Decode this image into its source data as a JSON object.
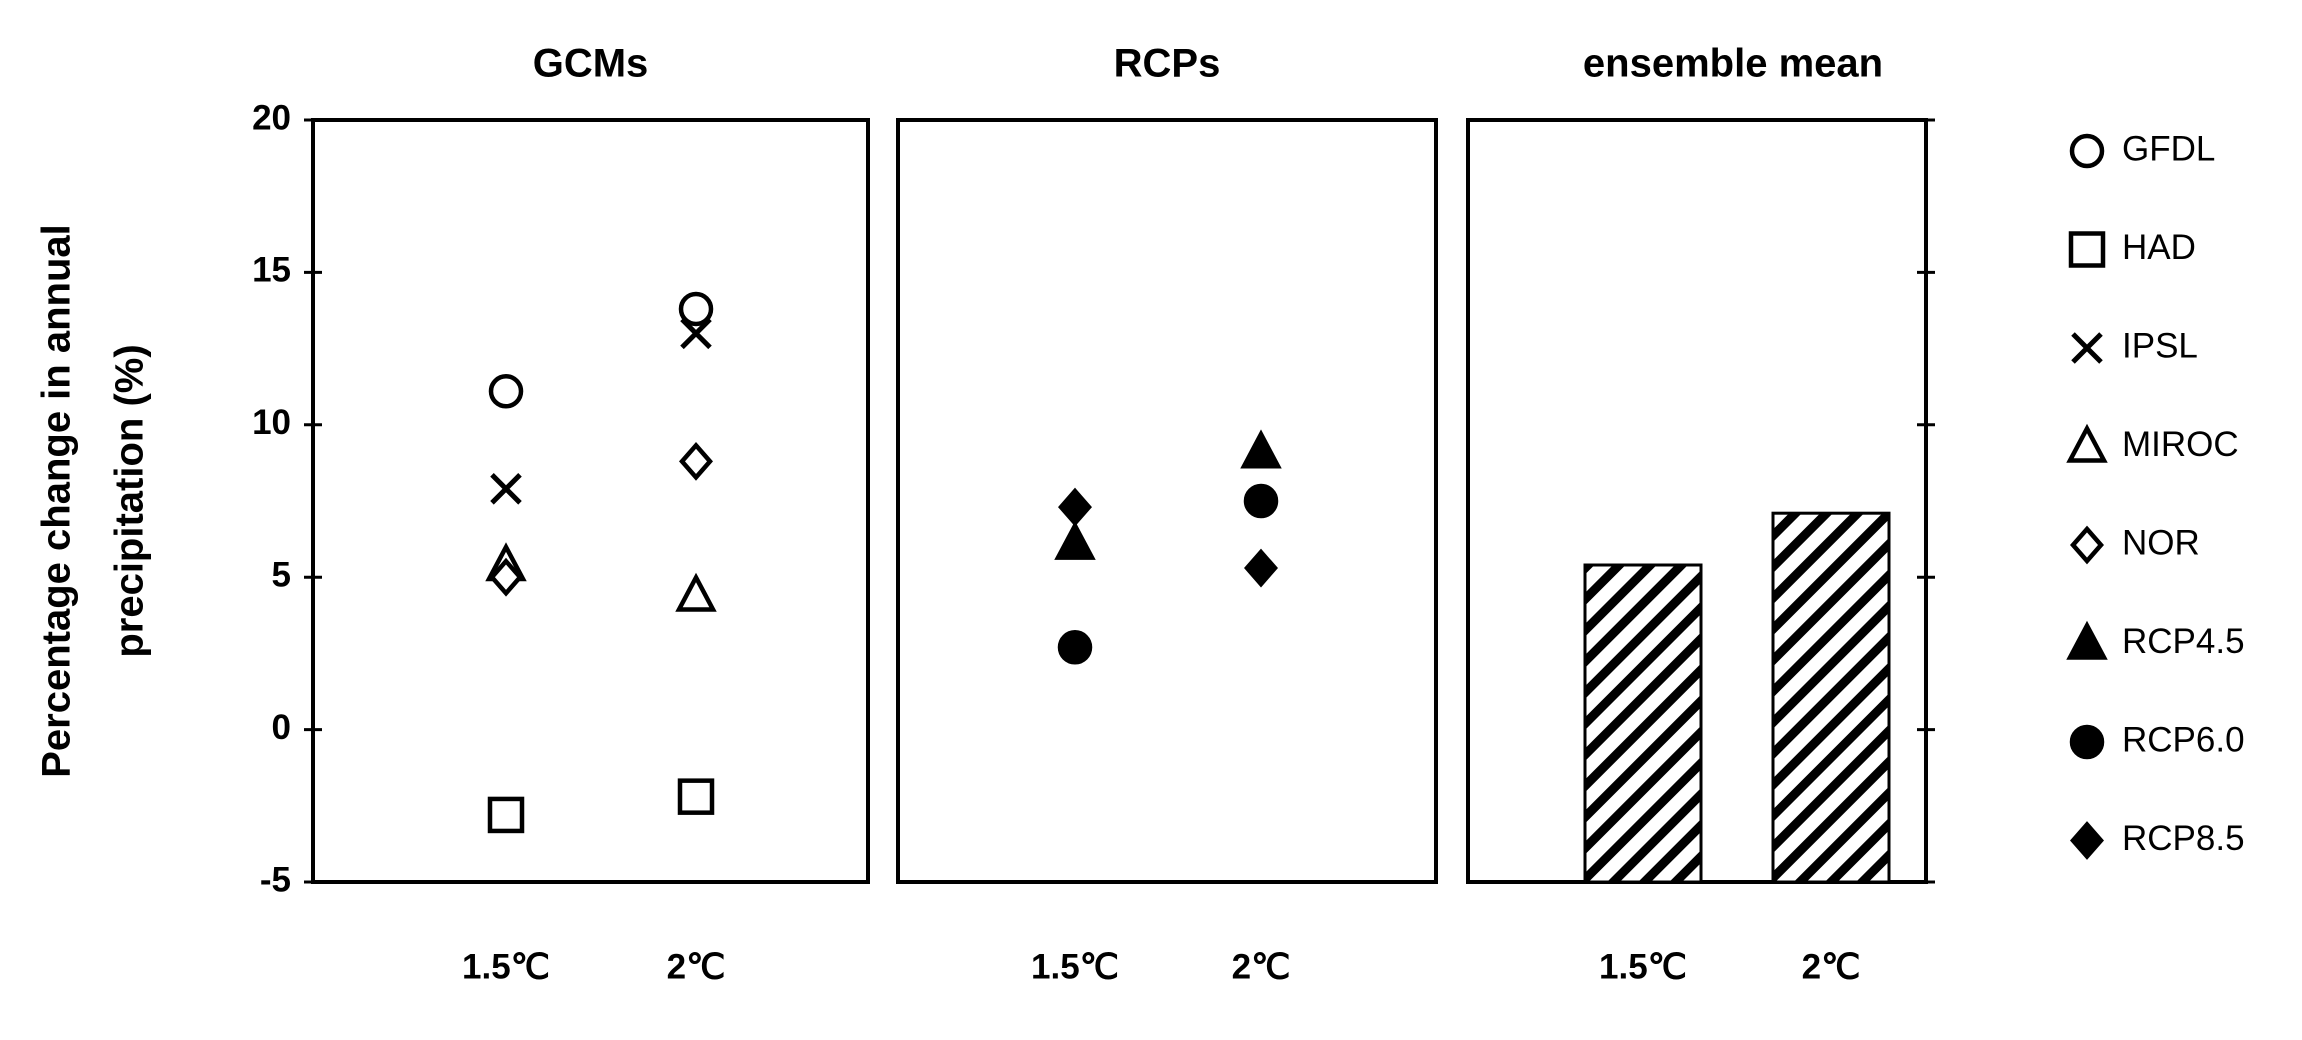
{
  "chart_data": {
    "type": "scatter-panels",
    "y_label": [
      "Percentage change in annual",
      "precipitation (%)"
    ],
    "ylim": [
      -5,
      20
    ],
    "yticks": [
      -5,
      0,
      5,
      10,
      15,
      20
    ],
    "panels": [
      {
        "type": "scatter",
        "title": "GCMs",
        "categories": [
          "1.5℃",
          "2℃"
        ],
        "series": [
          {
            "name": "GFDL",
            "marker": "open-circle",
            "color": "#000000",
            "values": [
              11.1,
              13.8
            ]
          },
          {
            "name": "HAD",
            "marker": "open-square",
            "color": "#000000",
            "values": [
              -2.8,
              -2.2
            ]
          },
          {
            "name": "IPSL",
            "marker": "cross",
            "color": "#000000",
            "values": [
              7.9,
              13.0
            ]
          },
          {
            "name": "MIROC",
            "marker": "open-triangle",
            "color": "#000000",
            "values": [
              5.4,
              4.4
            ]
          },
          {
            "name": "NOR",
            "marker": "open-diamond",
            "color": "#000000",
            "values": [
              5.0,
              8.8
            ]
          }
        ]
      },
      {
        "type": "scatter",
        "title": "RCPs",
        "categories": [
          "1.5℃",
          "2℃"
        ],
        "series": [
          {
            "name": "RCP4.5",
            "marker": "filled-triangle",
            "color": "#000000",
            "values": [
              6.1,
              9.1
            ]
          },
          {
            "name": "RCP6.0",
            "marker": "filled-circle",
            "color": "#000000",
            "values": [
              2.7,
              7.5
            ]
          },
          {
            "name": "RCP8.5",
            "marker": "filled-diamond",
            "color": "#000000",
            "values": [
              7.3,
              5.3
            ]
          }
        ]
      },
      {
        "type": "bar",
        "title": "ensemble mean",
        "categories": [
          "1.5℃",
          "2℃"
        ],
        "values": [
          5.4,
          7.1
        ],
        "color": "#000000"
      }
    ]
  }
}
